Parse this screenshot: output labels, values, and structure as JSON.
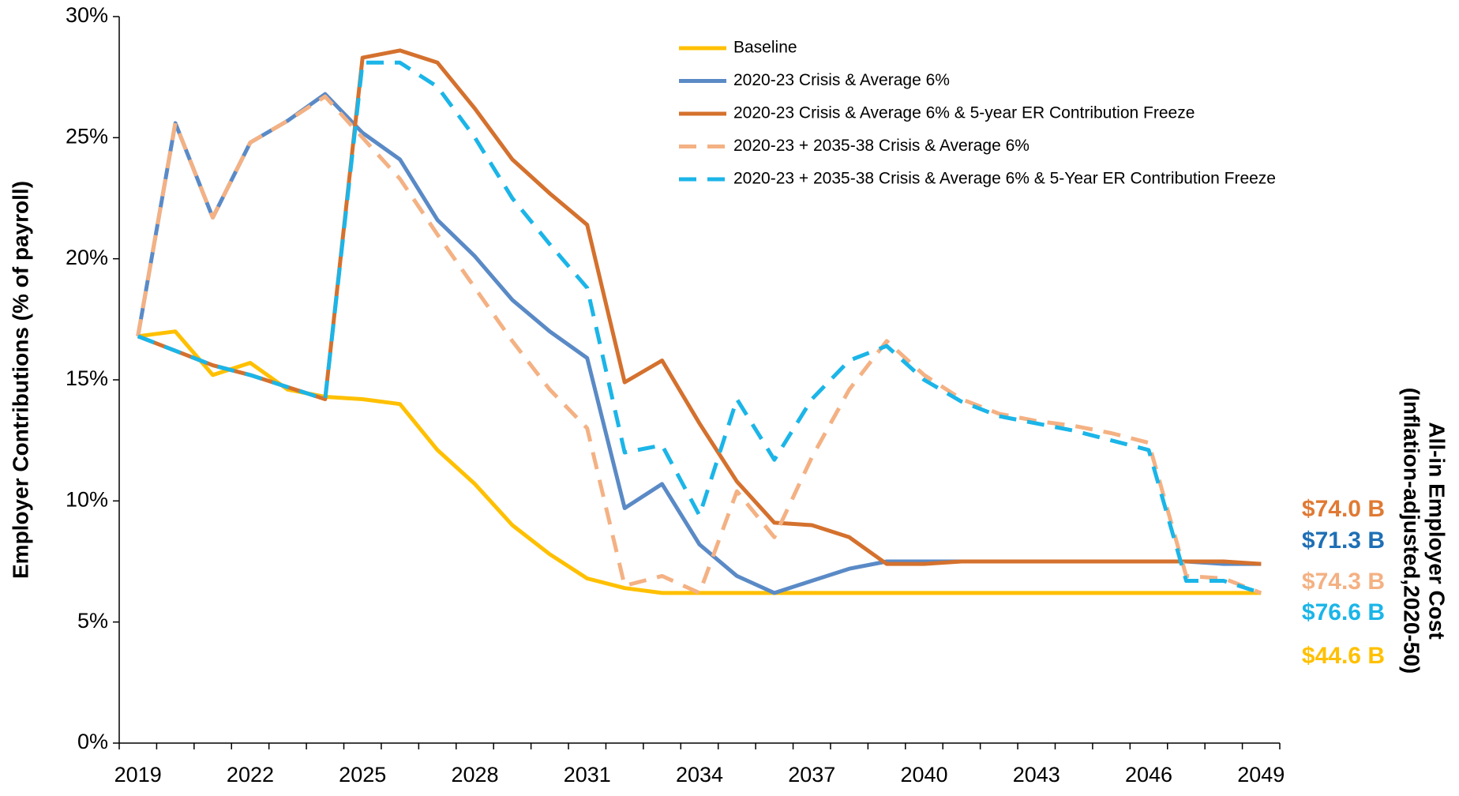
{
  "chart_data": {
    "type": "line",
    "y_label": "Employer Contributions (% of payroll)",
    "right_title": [
      "All-in Employer Cost",
      "(Inflation-adjusted,2020-50)"
    ],
    "categories": [
      "2019",
      null,
      null,
      "2022",
      null,
      null,
      "2025",
      null,
      null,
      "2028",
      null,
      null,
      "2031",
      null,
      null,
      "2034",
      null,
      null,
      "2037",
      null,
      null,
      "2040",
      null,
      null,
      "2043",
      null,
      null,
      "2046",
      null,
      null,
      "2049"
    ],
    "ylim": [
      0,
      30
    ],
    "yticks": [
      {
        "value": 0,
        "label": "0%"
      },
      {
        "value": 5,
        "label": "5%"
      },
      {
        "value": 10,
        "label": "10%"
      },
      {
        "value": 15,
        "label": "15%"
      },
      {
        "value": 20,
        "label": "20%"
      },
      {
        "value": 25,
        "label": "25%"
      },
      {
        "value": 30,
        "label": "30%"
      }
    ],
    "grid": false,
    "series": [
      {
        "name": "Baseline",
        "color": "#FFC000",
        "dashed": false,
        "values": [
          16.8,
          17.0,
          15.2,
          15.7,
          14.6,
          14.3,
          14.2,
          14.0,
          12.1,
          10.7,
          9.0,
          7.8,
          6.8,
          6.4,
          6.2,
          6.2,
          6.2,
          6.2,
          6.2,
          6.2,
          6.2,
          6.2,
          6.2,
          6.2,
          6.2,
          6.2,
          6.2,
          6.2,
          6.2,
          6.2,
          6.2
        ]
      },
      {
        "name": "2020-23 Crisis & Average 6%",
        "color": "#5A8AC6",
        "dashed": false,
        "values": [
          16.8,
          25.6,
          21.7,
          24.8,
          25.7,
          26.8,
          25.2,
          24.1,
          21.6,
          20.1,
          18.3,
          17.0,
          15.9,
          9.7,
          10.7,
          8.2,
          6.9,
          6.2,
          6.7,
          7.2,
          7.5,
          7.5,
          7.5,
          7.5,
          7.5,
          7.5,
          7.5,
          7.5,
          7.5,
          7.4,
          7.4
        ]
      },
      {
        "name": "2020-23 Crisis & Average 6% & 5-year ER Contribution Freeze",
        "color": "#D4712E",
        "dashed": false,
        "values": [
          16.8,
          16.2,
          15.6,
          15.2,
          14.7,
          14.2,
          28.3,
          28.6,
          28.1,
          26.2,
          24.1,
          22.7,
          21.4,
          14.9,
          15.8,
          13.2,
          10.8,
          9.1,
          9.0,
          8.5,
          7.4,
          7.4,
          7.5,
          7.5,
          7.5,
          7.5,
          7.5,
          7.5,
          7.5,
          7.5,
          7.4
        ]
      },
      {
        "name": "2020-23 + 2035-38 Crisis & Average 6%",
        "color": "#F4B183",
        "dashed": true,
        "values": [
          16.8,
          25.6,
          21.7,
          24.8,
          25.7,
          26.7,
          25.0,
          23.3,
          21.0,
          18.8,
          16.6,
          14.6,
          13.0,
          6.5,
          6.9,
          6.2,
          10.4,
          8.5,
          11.8,
          14.6,
          16.6,
          15.2,
          14.2,
          13.6,
          13.3,
          13.1,
          12.8,
          12.4,
          6.9,
          6.8,
          6.2
        ]
      },
      {
        "name": "2020-23 + 2035-38 Crisis & Average 6% & 5-Year ER Contribution Freeze",
        "color": "#1BB5E8",
        "dashed": true,
        "values": [
          16.8,
          16.2,
          15.6,
          15.2,
          14.7,
          14.2,
          28.1,
          28.1,
          27.1,
          25.0,
          22.5,
          20.6,
          18.8,
          12.0,
          12.3,
          9.4,
          14.2,
          11.7,
          14.2,
          15.8,
          16.4,
          15.0,
          14.1,
          13.5,
          13.2,
          12.9,
          12.5,
          12.1,
          6.7,
          6.7,
          6.2
        ]
      }
    ],
    "annotations": [
      {
        "text": "$74.0 B",
        "color": "#E07A34"
      },
      {
        "text": "$71.3 B",
        "color": "#1F6FB5"
      },
      {
        "text": "$74.3 B",
        "color": "#F4B183"
      },
      {
        "text": "$76.6 B",
        "color": "#1BB5E8"
      },
      {
        "text": "$44.6 B",
        "color": "#FFC000"
      }
    ]
  }
}
